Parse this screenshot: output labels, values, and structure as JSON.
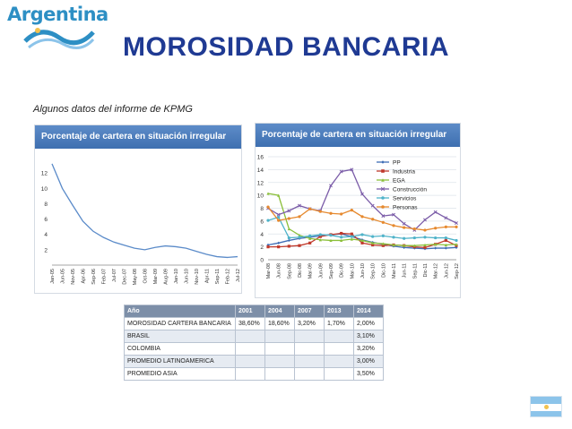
{
  "logo": {
    "text": "Argentina"
  },
  "slide": {
    "title": "MOROSIDAD BANCARIA",
    "subtitle": "Algunos datos del informe de KPMG"
  },
  "chart_data": [
    {
      "type": "line",
      "title": "Porcentaje de cartera en situación irregular",
      "ylim": [
        0,
        14
      ],
      "yticks": [
        2,
        4,
        6,
        8,
        10,
        12
      ],
      "grid": false,
      "categories": [
        "Jan-05",
        "Jun-05",
        "Nov-05",
        "Apr-06",
        "Sep-06",
        "Feb-07",
        "Jul-07",
        "Dec-07",
        "May-08",
        "Oct-08",
        "Mar-09",
        "Aug-09",
        "Jan-10",
        "Jun-10",
        "Nov-10",
        "Apr-11",
        "Sep-11",
        "Feb-12",
        "Jul-12"
      ],
      "series": [
        {
          "color": "#5b8bc9",
          "values": [
            13.2,
            10.0,
            7.8,
            5.7,
            4.4,
            3.6,
            3.0,
            2.6,
            2.2,
            2.0,
            2.3,
            2.5,
            2.4,
            2.2,
            1.8,
            1.4,
            1.1,
            1.0,
            1.1
          ]
        }
      ]
    },
    {
      "type": "line",
      "title": "Porcentaje de cartera en situación irregular",
      "ylim": [
        0,
        16
      ],
      "yticks": [
        0,
        2,
        4,
        6,
        8,
        10,
        12,
        14,
        16
      ],
      "grid": true,
      "legend": "top-right",
      "categories": [
        "Mar-08",
        "Jun-08",
        "Sep-08",
        "Dic-08",
        "Mar-09",
        "Jun-09",
        "Sep-09",
        "Dic-09",
        "Mar-10",
        "Jun-10",
        "Sep-10",
        "Dic-10",
        "Mar-11",
        "Jun-11",
        "Sep-11",
        "Dic-11",
        "Mar-12",
        "Jun-12",
        "Sep-12"
      ],
      "series": [
        {
          "name": "PP",
          "color": "#3f6db5",
          "marker": "diamond",
          "values": [
            2.3,
            2.6,
            3.0,
            3.3,
            3.5,
            3.7,
            3.9,
            4.0,
            3.6,
            3.1,
            2.7,
            2.4,
            2.1,
            1.9,
            1.8,
            1.7,
            1.8,
            1.8,
            1.9
          ]
        },
        {
          "name": "Industria",
          "color": "#c0392b",
          "marker": "square",
          "values": [
            2.0,
            2.0,
            2.1,
            2.2,
            2.6,
            3.6,
            3.9,
            4.1,
            4.0,
            2.6,
            2.3,
            2.2,
            2.3,
            2.2,
            2.0,
            1.9,
            2.4,
            3.0,
            2.2
          ]
        },
        {
          "name": "EGA",
          "color": "#8bbf3a",
          "marker": "triangle",
          "values": [
            10.3,
            10.0,
            4.8,
            3.8,
            3.3,
            3.1,
            3.0,
            3.0,
            3.2,
            3.0,
            2.6,
            2.5,
            2.3,
            2.2,
            2.2,
            2.3,
            2.4,
            2.3,
            2.4
          ]
        },
        {
          "name": "Construcción",
          "color": "#7b5ca8",
          "marker": "x",
          "values": [
            8.0,
            7.0,
            7.6,
            8.4,
            7.9,
            7.6,
            11.5,
            13.7,
            14.0,
            10.2,
            8.4,
            6.8,
            7.0,
            5.6,
            4.6,
            6.2,
            7.4,
            6.5,
            5.7
          ]
        },
        {
          "name": "Servicios",
          "color": "#4fb3c9",
          "marker": "circle",
          "values": [
            6.1,
            6.6,
            3.4,
            3.5,
            3.7,
            3.9,
            3.8,
            3.5,
            3.6,
            3.9,
            3.6,
            3.7,
            3.5,
            3.3,
            3.4,
            3.5,
            3.4,
            3.4,
            3.0
          ]
        },
        {
          "name": "Personas",
          "color": "#e6892e",
          "marker": "circle",
          "values": [
            8.2,
            6.1,
            6.4,
            6.7,
            7.9,
            7.5,
            7.2,
            7.1,
            7.7,
            6.7,
            6.3,
            5.8,
            5.3,
            5.0,
            4.8,
            4.6,
            4.9,
            5.1,
            5.1
          ]
        }
      ]
    },
    {
      "type": "table",
      "columns": [
        "Año",
        "2001",
        "2004",
        "2007",
        "2013",
        "2014"
      ],
      "rows": [
        [
          "MOROSIDAD CARTERA BANCARIA",
          "38,60%",
          "18,60%",
          "3,20%",
          "1,70%",
          "2,00%"
        ],
        [
          "BRASIL",
          "",
          "",
          "",
          "",
          "3,10%"
        ],
        [
          "COLOMBIA",
          "",
          "",
          "",
          "",
          "3,20%"
        ],
        [
          "PROMEDIO LATINOAMERICA",
          "",
          "",
          "",
          "",
          "3,00%"
        ],
        [
          "PROMEDIO ASIA",
          "",
          "",
          "",
          "",
          "3,50%"
        ]
      ]
    }
  ]
}
